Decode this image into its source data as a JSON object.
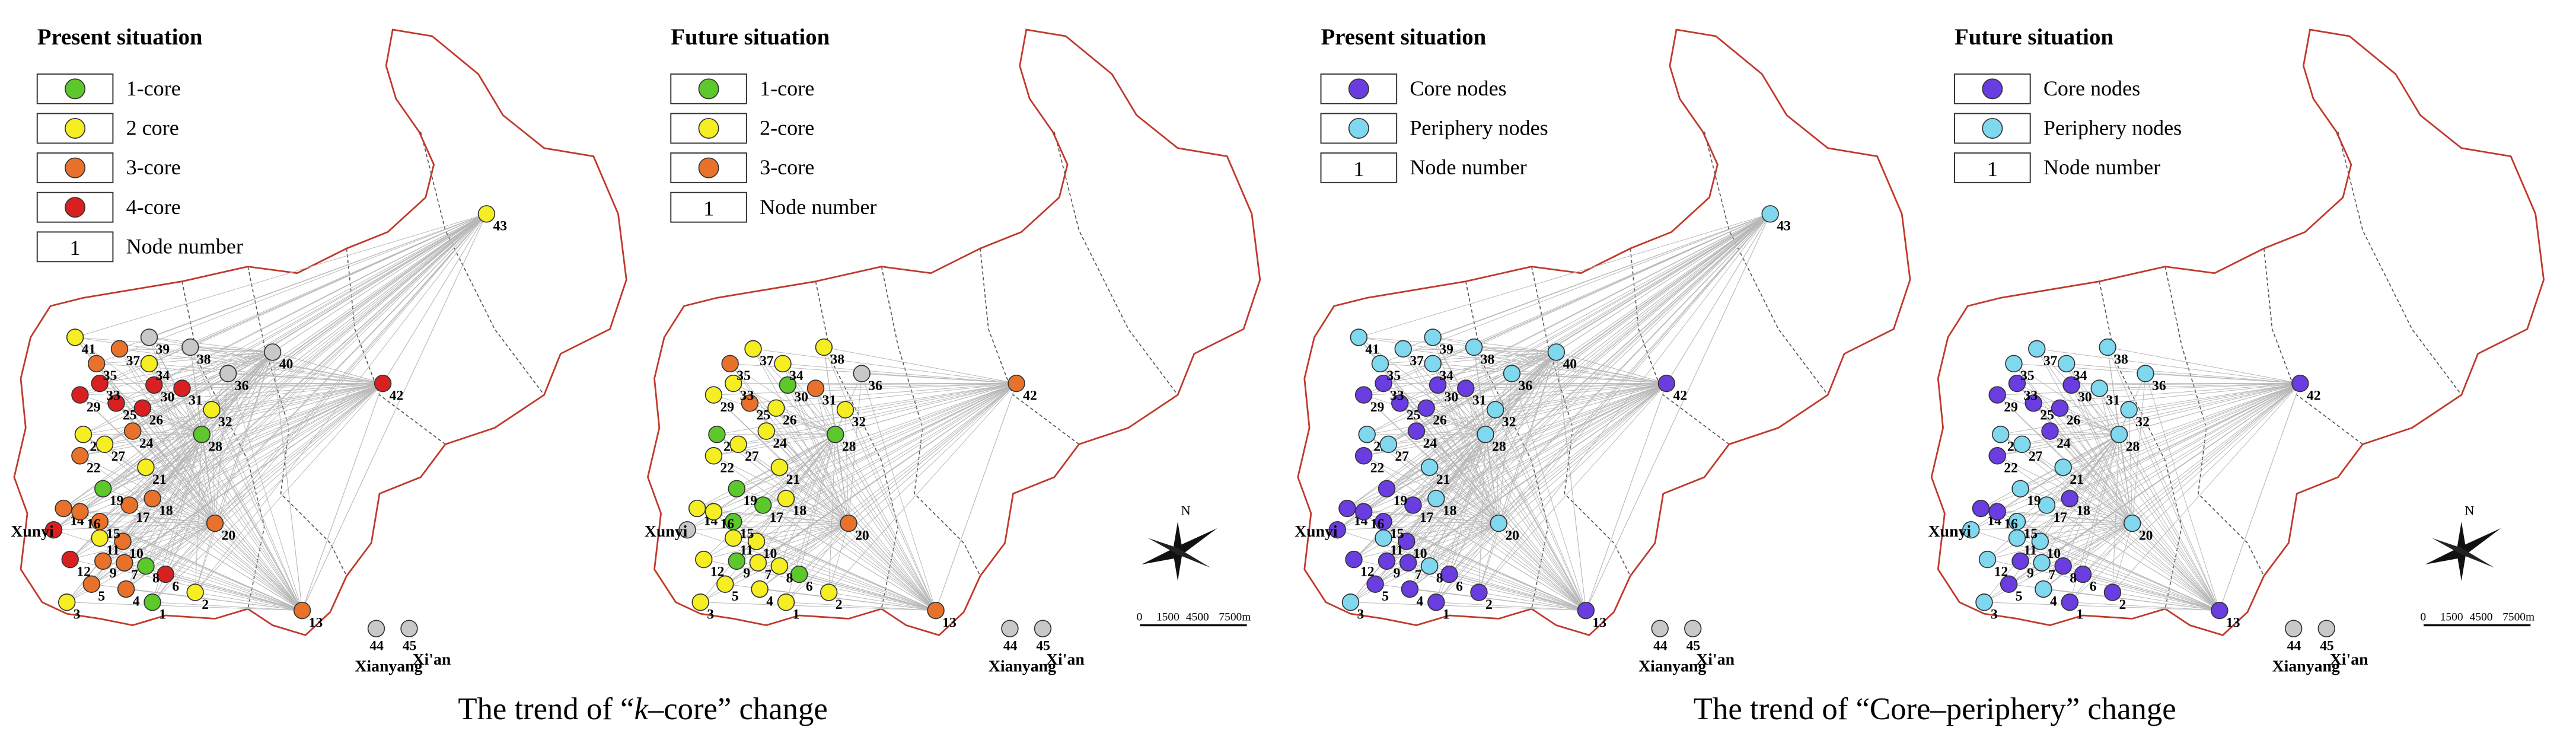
{
  "panels": [
    {
      "title": "Present situation",
      "legend": [
        {
          "label": "1-core",
          "color": "#5cc82c"
        },
        {
          "label": "2 core",
          "color": "#f4ee22"
        },
        {
          "label": "3-core",
          "color": "#e8722c"
        },
        {
          "label": "4-core",
          "color": "#d82020"
        },
        {
          "symbol": "1",
          "label": "Node number"
        }
      ],
      "nodes": [
        {
          "label": "1",
          "color": "#5cc82c"
        },
        {
          "label": "2",
          "color": "#f4ee22"
        },
        {
          "label": "3",
          "color": "#f4ee22"
        },
        {
          "label": "4",
          "color": "#e8722c"
        },
        {
          "label": "5",
          "color": "#e8722c"
        },
        {
          "label": "6",
          "color": "#d82020"
        },
        {
          "label": "7",
          "color": "#e8722c"
        },
        {
          "label": "8",
          "color": "#5cc82c"
        },
        {
          "label": "9",
          "color": "#e8722c"
        },
        {
          "label": "10",
          "color": "#e8722c"
        },
        {
          "label": "11",
          "color": "#f4ee22"
        },
        {
          "label": "12",
          "color": "#d82020"
        },
        {
          "label": "13",
          "color": "#e8722c"
        },
        {
          "label": "14",
          "color": "#e8722c"
        },
        {
          "label": "15",
          "color": "#e8722c"
        },
        {
          "label": "16",
          "color": "#e8722c"
        },
        {
          "label": "17",
          "color": "#e8722c"
        },
        {
          "label": "18",
          "color": "#e8722c"
        },
        {
          "label": "19",
          "color": "#5cc82c"
        },
        {
          "label": "20",
          "color": "#e8722c"
        },
        {
          "label": "21",
          "color": "#f4ee22"
        },
        {
          "label": "22",
          "color": "#e8722c"
        },
        {
          "label": "23",
          "color": "#f4ee22"
        },
        {
          "label": "24",
          "color": "#e8722c"
        },
        {
          "label": "25",
          "color": "#d82020"
        },
        {
          "label": "26",
          "color": "#d82020"
        },
        {
          "label": "27",
          "color": "#f4ee22"
        },
        {
          "label": "28",
          "color": "#5cc82c"
        },
        {
          "label": "29",
          "color": "#d82020"
        },
        {
          "label": "30",
          "color": "#d82020"
        },
        {
          "label": "31",
          "color": "#d82020"
        },
        {
          "label": "32",
          "color": "#f4ee22"
        },
        {
          "label": "33",
          "color": "#d82020"
        },
        {
          "label": "34",
          "color": "#f4ee22"
        },
        {
          "label": "35",
          "color": "#e8722c"
        },
        {
          "label": "36",
          "color": "#c8c8c8"
        },
        {
          "label": "37",
          "color": "#e8722c"
        },
        {
          "label": "38",
          "color": "#c8c8c8"
        },
        {
          "label": "39",
          "color": "#c8c8c8"
        },
        {
          "label": "40",
          "color": "#c8c8c8"
        },
        {
          "label": "41",
          "color": "#f4ee22"
        },
        {
          "label": "42",
          "color": "#d82020"
        },
        {
          "label": "43",
          "color": "#f4ee22"
        },
        {
          "label": "44",
          "color": "#c8c8c8"
        },
        {
          "label": "45",
          "color": "#c8c8c8"
        },
        {
          "label": "Xunyi",
          "color": "#d82020"
        }
      ],
      "places": [
        "Xianyang",
        "Xi'an"
      ]
    },
    {
      "title": "Future situation",
      "legend": [
        {
          "label": "1-core",
          "color": "#5cc82c"
        },
        {
          "label": "2-core",
          "color": "#f4ee22"
        },
        {
          "label": "3-core",
          "color": "#e8722c"
        },
        {
          "symbol": "1",
          "label": "Node number"
        }
      ],
      "nodes": [
        {
          "label": "1",
          "color": "#f4ee22"
        },
        {
          "label": "2",
          "color": "#f4ee22"
        },
        {
          "label": "3",
          "color": "#f4ee22"
        },
        {
          "label": "4",
          "color": "#f4ee22"
        },
        {
          "label": "5",
          "color": "#f4ee22"
        },
        {
          "label": "6",
          "color": "#5cc82c"
        },
        {
          "label": "7",
          "color": "#f4ee22"
        },
        {
          "label": "8",
          "color": "#f4ee22"
        },
        {
          "label": "9",
          "color": "#5cc82c"
        },
        {
          "label": "10",
          "color": "#f4ee22"
        },
        {
          "label": "11",
          "color": "#f4ee22"
        },
        {
          "label": "12",
          "color": "#f4ee22"
        },
        {
          "label": "13",
          "color": "#e8722c"
        },
        {
          "label": "14",
          "color": "#f4ee22"
        },
        {
          "label": "15",
          "color": "#5cc82c"
        },
        {
          "label": "16",
          "color": "#f4ee22"
        },
        {
          "label": "17",
          "color": "#5cc82c"
        },
        {
          "label": "18",
          "color": "#f4ee22"
        },
        {
          "label": "19",
          "color": "#5cc82c"
        },
        {
          "label": "20",
          "color": "#e8722c"
        },
        {
          "label": "21",
          "color": "#f4ee22"
        },
        {
          "label": "22",
          "color": "#f4ee22"
        },
        {
          "label": "23",
          "color": "#5cc82c"
        },
        {
          "label": "24",
          "color": "#f4ee22"
        },
        {
          "label": "25",
          "color": "#e8722c"
        },
        {
          "label": "26",
          "color": "#f4ee22"
        },
        {
          "label": "27",
          "color": "#f4ee22"
        },
        {
          "label": "28",
          "color": "#5cc82c"
        },
        {
          "label": "29",
          "color": "#f4ee22"
        },
        {
          "label": "30",
          "color": "#5cc82c"
        },
        {
          "label": "31",
          "color": "#e8722c"
        },
        {
          "label": "32",
          "color": "#f4ee22"
        },
        {
          "label": "33",
          "color": "#f4ee22"
        },
        {
          "label": "34",
          "color": "#f4ee22"
        },
        {
          "label": "35",
          "color": "#e8722c"
        },
        {
          "label": "36",
          "color": "#c8c8c8"
        },
        {
          "label": "37",
          "color": "#f4ee22"
        },
        {
          "label": "38",
          "color": "#f4ee22"
        },
        {
          "label": "42",
          "color": "#e8722c"
        },
        {
          "label": "44",
          "color": "#c8c8c8"
        },
        {
          "label": "45",
          "color": "#c8c8c8"
        },
        {
          "label": "Xunyi",
          "color": "#c8c8c8"
        }
      ],
      "places": [
        "Xianyang",
        "Xi'an"
      ],
      "compass": {
        "north": "N",
        "scale": [
          "0",
          "1500",
          "4500",
          "7500m"
        ]
      }
    },
    {
      "title": "Present situation",
      "legend": [
        {
          "label": "Core nodes",
          "color": "#6a3de0"
        },
        {
          "label": "Periphery nodes",
          "color": "#80d8ee"
        },
        {
          "symbol": "1",
          "label": "Node number"
        }
      ],
      "nodes": [
        {
          "label": "1",
          "color": "#6a3de0"
        },
        {
          "label": "2",
          "color": "#6a3de0"
        },
        {
          "label": "3",
          "color": "#80d8ee"
        },
        {
          "label": "4",
          "color": "#6a3de0"
        },
        {
          "label": "5",
          "color": "#6a3de0"
        },
        {
          "label": "6",
          "color": "#6a3de0"
        },
        {
          "label": "7",
          "color": "#6a3de0"
        },
        {
          "label": "8",
          "color": "#80d8ee"
        },
        {
          "label": "9",
          "color": "#6a3de0"
        },
        {
          "label": "10",
          "color": "#6a3de0"
        },
        {
          "label": "11",
          "color": "#80d8ee"
        },
        {
          "label": "12",
          "color": "#6a3de0"
        },
        {
          "label": "13",
          "color": "#6a3de0"
        },
        {
          "label": "14",
          "color": "#6a3de0"
        },
        {
          "label": "15",
          "color": "#6a3de0"
        },
        {
          "label": "16",
          "color": "#6a3de0"
        },
        {
          "label": "17",
          "color": "#6a3de0"
        },
        {
          "label": "18",
          "color": "#80d8ee"
        },
        {
          "label": "19",
          "color": "#6a3de0"
        },
        {
          "label": "20",
          "color": "#80d8ee"
        },
        {
          "label": "21",
          "color": "#80d8ee"
        },
        {
          "label": "22",
          "color": "#6a3de0"
        },
        {
          "label": "23",
          "color": "#80d8ee"
        },
        {
          "label": "24",
          "color": "#6a3de0"
        },
        {
          "label": "25",
          "color": "#6a3de0"
        },
        {
          "label": "26",
          "color": "#6a3de0"
        },
        {
          "label": "27",
          "color": "#80d8ee"
        },
        {
          "label": "28",
          "color": "#80d8ee"
        },
        {
          "label": "29",
          "color": "#6a3de0"
        },
        {
          "label": "30",
          "color": "#6a3de0"
        },
        {
          "label": "31",
          "color": "#6a3de0"
        },
        {
          "label": "32",
          "color": "#80d8ee"
        },
        {
          "label": "33",
          "color": "#6a3de0"
        },
        {
          "label": "34",
          "color": "#80d8ee"
        },
        {
          "label": "35",
          "color": "#80d8ee"
        },
        {
          "label": "36",
          "color": "#80d8ee"
        },
        {
          "label": "37",
          "color": "#80d8ee"
        },
        {
          "label": "38",
          "color": "#80d8ee"
        },
        {
          "label": "39",
          "color": "#80d8ee"
        },
        {
          "label": "40",
          "color": "#80d8ee"
        },
        {
          "label": "41",
          "color": "#80d8ee"
        },
        {
          "label": "42",
          "color": "#6a3de0"
        },
        {
          "label": "43",
          "color": "#80d8ee"
        },
        {
          "label": "44",
          "color": "#c8c8c8"
        },
        {
          "label": "45",
          "color": "#c8c8c8"
        },
        {
          "label": "Xunyi",
          "color": "#6a3de0"
        }
      ],
      "places": [
        "Xianyang",
        "Xi'an"
      ]
    },
    {
      "title": "Future situation",
      "legend": [
        {
          "label": "Core nodes",
          "color": "#6a3de0"
        },
        {
          "label": "Periphery nodes",
          "color": "#80d8ee"
        },
        {
          "symbol": "1",
          "label": "Node number"
        }
      ],
      "nodes": [
        {
          "label": "1",
          "color": "#6a3de0"
        },
        {
          "label": "2",
          "color": "#6a3de0"
        },
        {
          "label": "3",
          "color": "#80d8ee"
        },
        {
          "label": "4",
          "color": "#80d8ee"
        },
        {
          "label": "5",
          "color": "#6a3de0"
        },
        {
          "label": "6",
          "color": "#6a3de0"
        },
        {
          "label": "7",
          "color": "#80d8ee"
        },
        {
          "label": "8",
          "color": "#6a3de0"
        },
        {
          "label": "9",
          "color": "#6a3de0"
        },
        {
          "label": "10",
          "color": "#80d8ee"
        },
        {
          "label": "11",
          "color": "#80d8ee"
        },
        {
          "label": "12",
          "color": "#80d8ee"
        },
        {
          "label": "13",
          "color": "#6a3de0"
        },
        {
          "label": "14",
          "color": "#6a3de0"
        },
        {
          "label": "15",
          "color": "#80d8ee"
        },
        {
          "label": "16",
          "color": "#6a3de0"
        },
        {
          "label": "17",
          "color": "#80d8ee"
        },
        {
          "label": "18",
          "color": "#6a3de0"
        },
        {
          "label": "19",
          "color": "#80d8ee"
        },
        {
          "label": "20",
          "color": "#80d8ee"
        },
        {
          "label": "21",
          "color": "#80d8ee"
        },
        {
          "label": "22",
          "color": "#6a3de0"
        },
        {
          "label": "23",
          "color": "#80d8ee"
        },
        {
          "label": "24",
          "color": "#6a3de0"
        },
        {
          "label": "25",
          "color": "#6a3de0"
        },
        {
          "label": "26",
          "color": "#6a3de0"
        },
        {
          "label": "27",
          "color": "#80d8ee"
        },
        {
          "label": "28",
          "color": "#80d8ee"
        },
        {
          "label": "29",
          "color": "#6a3de0"
        },
        {
          "label": "30",
          "color": "#6a3de0"
        },
        {
          "label": "31",
          "color": "#80d8ee"
        },
        {
          "label": "32",
          "color": "#80d8ee"
        },
        {
          "label": "33",
          "color": "#6a3de0"
        },
        {
          "label": "34",
          "color": "#80d8ee"
        },
        {
          "label": "35",
          "color": "#80d8ee"
        },
        {
          "label": "36",
          "color": "#80d8ee"
        },
        {
          "label": "37",
          "color": "#80d8ee"
        },
        {
          "label": "38",
          "color": "#80d8ee"
        },
        {
          "label": "42",
          "color": "#6a3de0"
        },
        {
          "label": "44",
          "color": "#c8c8c8"
        },
        {
          "label": "45",
          "color": "#c8c8c8"
        },
        {
          "label": "Xunyi",
          "color": "#80d8ee"
        }
      ],
      "places": [
        "Xianyang",
        "Xi'an"
      ],
      "compass": {
        "north": "N",
        "scale": [
          "0",
          "1500",
          "4500",
          "7500m"
        ]
      }
    }
  ],
  "captions": [
    {
      "before": "The trend of “",
      "italic": "k",
      "after": "–core” change"
    },
    {
      "before": "The trend of “Core–periphery” change"
    }
  ]
}
